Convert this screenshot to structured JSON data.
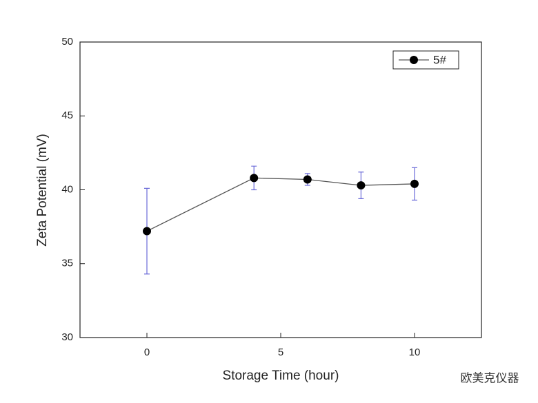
{
  "chart_data": {
    "type": "line",
    "xlabel": "Storage Time (hour)",
    "ylabel": "Zeta Potential (mV)",
    "x": [
      0,
      4,
      6,
      8,
      10
    ],
    "series": [
      {
        "name": "5#",
        "color": "#000000",
        "line_color": "#555555",
        "error_color": "#6a6ad8",
        "values": [
          37.2,
          40.8,
          40.7,
          40.3,
          40.4
        ],
        "errors": [
          2.9,
          0.8,
          0.4,
          0.9,
          1.1
        ]
      }
    ],
    "xlim": [
      -2.5,
      12.5
    ],
    "xticks": [
      0,
      5,
      10
    ],
    "ylim": [
      30,
      50
    ],
    "yticks": [
      30,
      35,
      40,
      45,
      50
    ],
    "legend": "upper right",
    "watermark": "欧美克仪器"
  }
}
